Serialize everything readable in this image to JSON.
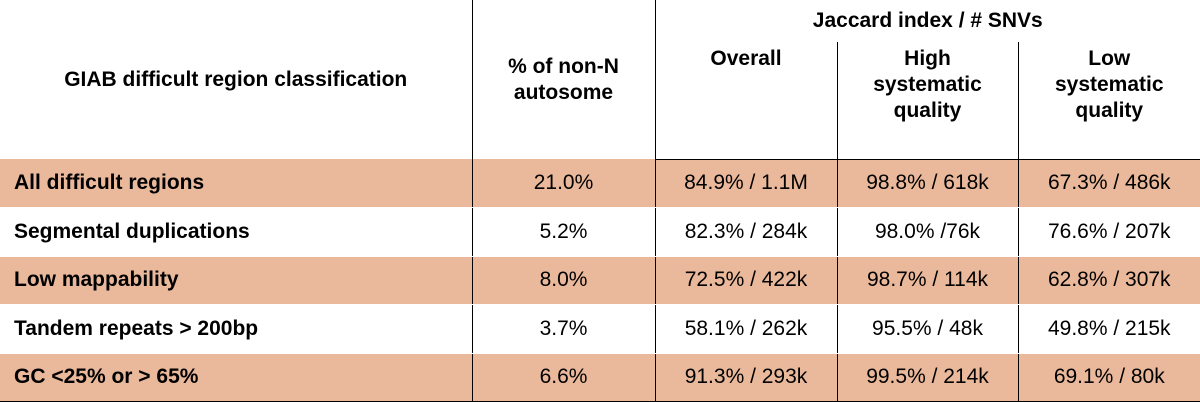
{
  "header": {
    "classification": "GIAB difficult region classification",
    "pct_autosome": "% of non-N autosome",
    "jaccard_group": "Jaccard index / # SNVs",
    "overall": "Overall",
    "high_quality": "High systematic quality",
    "low_quality": "Low systematic quality"
  },
  "rows": [
    {
      "name": "All difficult regions",
      "pct": "21.0%",
      "overall": "84.9% / 1.1M",
      "high": "98.8% / 618k",
      "low": "67.3% / 486k",
      "shaded": true
    },
    {
      "name": "Segmental duplications",
      "pct": "5.2%",
      "overall": "82.3% / 284k",
      "high": "98.0% /76k",
      "low": "76.6% / 207k",
      "shaded": false
    },
    {
      "name": "Low mappability",
      "pct": "8.0%",
      "overall": "72.5% / 422k",
      "high": "98.7% / 114k",
      "low": "62.8% / 307k",
      "shaded": true
    },
    {
      "name": "Tandem repeats > 200bp",
      "pct": "3.7%",
      "overall": "58.1% / 262k",
      "high": "95.5% / 48k",
      "low": "49.8% / 215k",
      "shaded": false
    },
    {
      "name": "GC <25% or > 65%",
      "pct": "6.6%",
      "overall": "91.3% / 293k",
      "high": "99.5% / 214k",
      "low": "69.1% / 80k",
      "shaded": true
    }
  ],
  "colors": {
    "row_shade": "#eab89a",
    "border": "#000000"
  }
}
